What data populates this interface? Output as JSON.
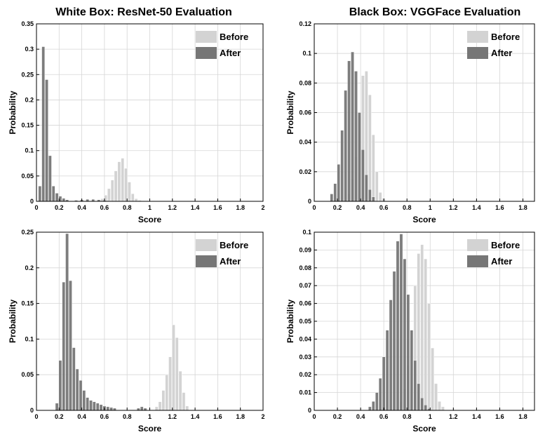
{
  "figure_colors": {
    "before": "#d3d3d3",
    "after": "#767676",
    "grid": "#d6d6d6",
    "axis": "#000000"
  },
  "chart_data": [
    {
      "type": "bar",
      "title": "White Box: ResNet-50 Evaluation",
      "xlabel": "Score",
      "ylabel": "Probability",
      "xlim": [
        0,
        2
      ],
      "ylim": [
        0,
        0.35
      ],
      "xticks": [
        "0",
        "0.2",
        "0.4",
        "0.6",
        "0.8",
        "1",
        "1.2",
        "1.4",
        "1.6",
        "1.8",
        "2"
      ],
      "yticks": [
        "0",
        "0.05",
        "0.1",
        "0.15",
        "0.2",
        "0.25",
        "0.3",
        "0.35"
      ],
      "legend": "top-right",
      "grid": true,
      "series": [
        {
          "name": "Before",
          "x": [
            0.55,
            0.58,
            0.61,
            0.64,
            0.67,
            0.7,
            0.73,
            0.76,
            0.79,
            0.82,
            0.85,
            0.88,
            0.91
          ],
          "values": [
            0.002,
            0.005,
            0.012,
            0.025,
            0.042,
            0.06,
            0.078,
            0.085,
            0.065,
            0.038,
            0.015,
            0.005,
            0.002
          ]
        },
        {
          "name": "After",
          "x": [
            0.03,
            0.06,
            0.09,
            0.12,
            0.15,
            0.18,
            0.21,
            0.24,
            0.27,
            0.35,
            0.4,
            0.45,
            0.5,
            0.55,
            0.6,
            0.65
          ],
          "values": [
            0.03,
            0.305,
            0.24,
            0.09,
            0.03,
            0.016,
            0.01,
            0.006,
            0.003,
            0.002,
            0.003,
            0.004,
            0.004,
            0.003,
            0.002,
            0.001
          ]
        }
      ]
    },
    {
      "type": "bar",
      "title": "Black Box: VGGFace Evaluation",
      "xlabel": "Score",
      "ylabel": "Probability",
      "xlim": [
        0,
        1.9
      ],
      "ylim": [
        0,
        0.12
      ],
      "xticks": [
        "0",
        "0.2",
        "0.4",
        "0.6",
        "0.8",
        "1",
        "1.2",
        "1.4",
        "1.6",
        "1.8"
      ],
      "yticks": [
        "0",
        "0.02",
        "0.04",
        "0.06",
        "0.08",
        "0.1",
        "0.12"
      ],
      "legend": "top-right",
      "grid": true,
      "series": [
        {
          "name": "Before",
          "x": [
            0.3,
            0.33,
            0.36,
            0.39,
            0.42,
            0.45,
            0.48,
            0.51,
            0.54,
            0.57,
            0.6
          ],
          "values": [
            0.005,
            0.015,
            0.03,
            0.058,
            0.085,
            0.088,
            0.072,
            0.045,
            0.02,
            0.006,
            0.002
          ]
        },
        {
          "name": "After",
          "x": [
            0.15,
            0.18,
            0.21,
            0.24,
            0.27,
            0.3,
            0.33,
            0.36,
            0.39,
            0.42,
            0.45,
            0.48,
            0.51
          ],
          "values": [
            0.005,
            0.012,
            0.025,
            0.048,
            0.075,
            0.095,
            0.101,
            0.088,
            0.06,
            0.035,
            0.018,
            0.008,
            0.003
          ]
        }
      ]
    },
    {
      "type": "bar",
      "title": "",
      "xlabel": "Score",
      "ylabel": "Probability",
      "xlim": [
        0,
        2
      ],
      "ylim": [
        0,
        0.25
      ],
      "xticks": [
        "0",
        "0.2",
        "0.4",
        "0.6",
        "0.8",
        "1",
        "1.2",
        "1.4",
        "1.6",
        "1.8",
        "2"
      ],
      "yticks": [
        "0",
        "0.05",
        "0.1",
        "0.15",
        "0.2",
        "0.25"
      ],
      "legend": "top-right",
      "grid": true,
      "series": [
        {
          "name": "Before",
          "x": [
            1.06,
            1.09,
            1.12,
            1.15,
            1.18,
            1.21,
            1.24,
            1.27,
            1.3,
            1.33
          ],
          "values": [
            0.005,
            0.012,
            0.028,
            0.05,
            0.075,
            0.12,
            0.102,
            0.055,
            0.025,
            0.006
          ]
        },
        {
          "name": "After",
          "x": [
            0.18,
            0.21,
            0.24,
            0.27,
            0.3,
            0.33,
            0.36,
            0.39,
            0.42,
            0.45,
            0.48,
            0.51,
            0.54,
            0.57,
            0.6,
            0.63,
            0.66,
            0.69,
            0.9,
            0.93,
            0.96
          ],
          "values": [
            0.01,
            0.07,
            0.18,
            0.248,
            0.182,
            0.088,
            0.058,
            0.042,
            0.028,
            0.018,
            0.014,
            0.012,
            0.01,
            0.008,
            0.006,
            0.005,
            0.004,
            0.003,
            0.003,
            0.005,
            0.003
          ]
        }
      ]
    },
    {
      "type": "bar",
      "title": "",
      "xlabel": "Score",
      "ylabel": "Probability",
      "xlim": [
        0,
        1.9
      ],
      "ylim": [
        0,
        0.1
      ],
      "xticks": [
        "0",
        "0.2",
        "0.4",
        "0.6",
        "0.8",
        "1",
        "1.2",
        "1.4",
        "1.6",
        "1.8"
      ],
      "yticks": [
        "0",
        "0.01",
        "0.02",
        "0.03",
        "0.04",
        "0.05",
        "0.06",
        "0.07",
        "0.08",
        "0.09",
        "0.1"
      ],
      "legend": "top-right",
      "grid": true,
      "series": [
        {
          "name": "Before",
          "x": [
            0.72,
            0.75,
            0.78,
            0.81,
            0.84,
            0.87,
            0.9,
            0.93,
            0.96,
            0.99,
            1.02,
            1.05,
            1.08,
            1.11
          ],
          "values": [
            0.002,
            0.005,
            0.012,
            0.025,
            0.045,
            0.07,
            0.088,
            0.093,
            0.085,
            0.06,
            0.035,
            0.015,
            0.005,
            0.002
          ]
        },
        {
          "name": "After",
          "x": [
            0.48,
            0.51,
            0.54,
            0.57,
            0.6,
            0.63,
            0.66,
            0.69,
            0.72,
            0.75,
            0.78,
            0.81,
            0.84,
            0.87,
            0.9,
            0.93,
            0.96,
            0.99
          ],
          "values": [
            0.002,
            0.005,
            0.01,
            0.018,
            0.03,
            0.045,
            0.062,
            0.078,
            0.095,
            0.099,
            0.085,
            0.065,
            0.045,
            0.028,
            0.015,
            0.007,
            0.003,
            0.001
          ]
        }
      ]
    }
  ]
}
